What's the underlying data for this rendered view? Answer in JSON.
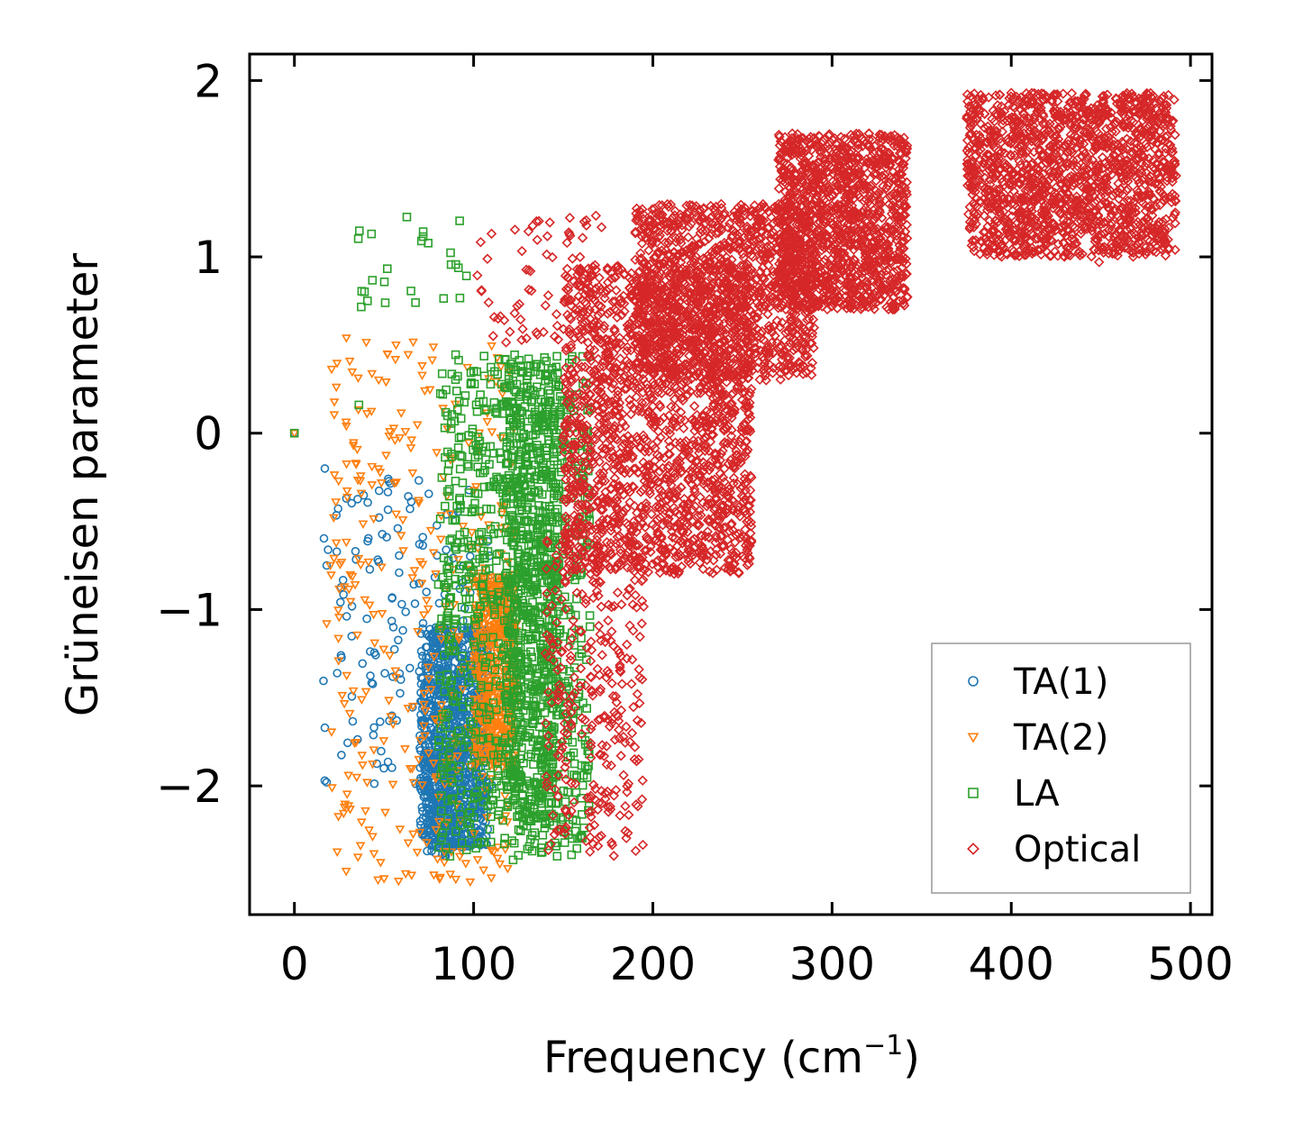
{
  "chart_data": {
    "type": "scatter",
    "title": "",
    "xlabel": "Frequency (cm",
    "xlabel_sup": "−1",
    "xlabel_close": ")",
    "ylabel": "Grüneisen parameter",
    "xlim": [
      -25,
      512
    ],
    "ylim": [
      -2.73,
      2.15
    ],
    "xticks": [
      0,
      100,
      200,
      300,
      400,
      500
    ],
    "xtick_labels": [
      "0",
      "100",
      "200",
      "300",
      "400",
      "500"
    ],
    "yticks": [
      -2,
      -1,
      0,
      1,
      2
    ],
    "ytick_labels": [
      "−2",
      "−1",
      "0",
      "1",
      "2"
    ],
    "grid": false,
    "legend_position": "bottom-right",
    "series": [
      {
        "name": "TA(1)",
        "color": "#1f77b4",
        "marker": "circle",
        "regions": [
          {
            "x": [
              15,
              110
            ],
            "y": [
              -2.0,
              -0.2
            ],
            "n": 160,
            "fmin": 0.0
          },
          {
            "x": [
              70,
              108
            ],
            "y": [
              -2.35,
              -1.1
            ],
            "n": 900,
            "fmin": 0.0
          },
          {
            "x": [
              72,
              92
            ],
            "y": [
              -2.4,
              -1.8
            ],
            "n": 160,
            "fmin": 0.0
          }
        ],
        "points": [
          [
            0,
            0
          ],
          [
            17,
            -0.2
          ],
          [
            18,
            -0.75
          ],
          [
            18,
            -1.98
          ],
          [
            17,
            -1.67
          ],
          [
            26,
            -1.26
          ],
          [
            29,
            -0.37
          ]
        ]
      },
      {
        "name": "TA(2)",
        "color": "#ff7f0e",
        "marker": "triangle-down",
        "regions": [
          {
            "x": [
              20,
              125
            ],
            "y": [
              -2.55,
              0.55
            ],
            "n": 340,
            "fmin": 0.0
          },
          {
            "x": [
              100,
              124
            ],
            "y": [
              -1.9,
              -0.8
            ],
            "n": 500,
            "fmin": 0.0
          }
        ],
        "points": [
          [
            0,
            0
          ],
          [
            87,
            -2.5
          ],
          [
            29,
            0.54
          ],
          [
            18,
            -1.08
          ]
        ]
      },
      {
        "name": "LA",
        "color": "#2ca02c",
        "marker": "square",
        "regions": [
          {
            "x": [
              35,
              100
            ],
            "y": [
              0.65,
              1.25
            ],
            "n": 26,
            "fmin": 0.0
          },
          {
            "x": [
              80,
              165
            ],
            "y": [
              -2.4,
              0.45
            ],
            "n": 900,
            "fmin": 0.0
          },
          {
            "x": [
              118,
              148
            ],
            "y": [
              -2.2,
              0.4
            ],
            "n": 700,
            "fmin": 0.0
          }
        ],
        "points": [
          [
            0,
            0
          ],
          [
            36,
            0.16
          ],
          [
            122,
            -2.42
          ],
          [
            100,
            -2.18
          ]
        ]
      },
      {
        "name": "Optical",
        "color": "#d62728",
        "marker": "diamond",
        "regions": [
          {
            "x": [
              100,
              175
            ],
            "y": [
              0.5,
              1.25
            ],
            "n": 70,
            "fmin": 0.0
          },
          {
            "x": [
              140,
              195
            ],
            "y": [
              -2.4,
              -0.6
            ],
            "n": 300,
            "fmin": 0.0
          },
          {
            "x": [
              150,
              255
            ],
            "y": [
              -0.8,
              0.95
            ],
            "n": 1800,
            "fmin": 0.0
          },
          {
            "x": [
              190,
              290
            ],
            "y": [
              0.3,
              1.3
            ],
            "n": 1200,
            "fmin": 0.0
          },
          {
            "x": [
              270,
              342
            ],
            "y": [
              0.7,
              1.7
            ],
            "n": 1300,
            "fmin": 0.0
          },
          {
            "x": [
              375,
              492
            ],
            "y": [
              1.0,
              1.93
            ],
            "n": 1600,
            "fmin": 0.0
          }
        ],
        "points": [
          [
            425,
            1.92
          ],
          [
            449,
            0.97
          ],
          [
            488,
            1.05
          ]
        ]
      }
    ],
    "legend": [
      "TA(1)",
      "TA(2)",
      "LA",
      "Optical"
    ]
  }
}
